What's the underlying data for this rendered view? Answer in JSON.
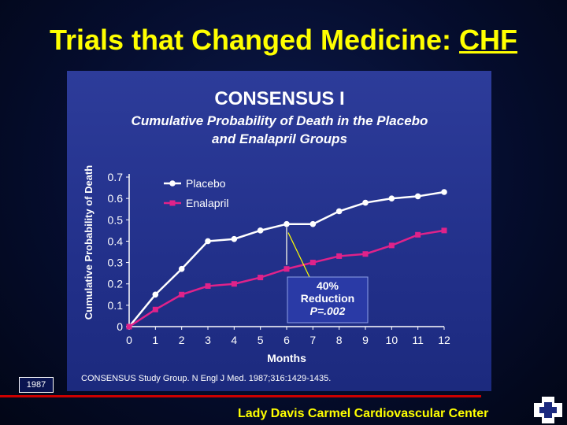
{
  "slide": {
    "title_main": "Trials that Changed Medicine: ",
    "title_abbr": "CHF",
    "year": "1987",
    "footer": "Lady Davis Carmel Cardiovascular Center"
  },
  "figure": {
    "heading": "CONSENSUS I",
    "subtitle_line1": "Cumulative Probability of Death in the Placebo",
    "subtitle_line2": "and Enalapril Groups",
    "annotation_line1": "40%",
    "annotation_line2": "Reduction",
    "annotation_line3": "P=.002",
    "citation": "CONSENSUS Study Group. N Engl J Med. 1987;316:1429-1435."
  },
  "colors": {
    "placebo": "#ffffff",
    "enalapril": "#e0228a",
    "axis": "#ffffff",
    "title": "#ffff00"
  },
  "chart_data": {
    "type": "line",
    "xlabel": "Months",
    "ylabel": "Cumulative Probability of Death",
    "xlim": [
      0,
      12
    ],
    "ylim": [
      0,
      0.7
    ],
    "x_ticks": [
      0,
      1,
      2,
      3,
      4,
      5,
      6,
      7,
      8,
      9,
      10,
      11,
      12
    ],
    "y_ticks": [
      "0",
      "0.1",
      "0.2",
      "0.3",
      "0.4",
      "0.5",
      "0.6",
      "0.7"
    ],
    "legend_position": "top-left",
    "grid": false,
    "x": [
      0,
      1,
      2,
      3,
      4,
      5,
      6,
      7,
      8,
      9,
      10,
      11,
      12
    ],
    "series": [
      {
        "name": "Placebo",
        "values": [
          0,
          0.15,
          0.27,
          0.4,
          0.41,
          0.45,
          0.48,
          0.48,
          0.54,
          0.58,
          0.6,
          0.61,
          0.63
        ]
      },
      {
        "name": "Enalapril",
        "values": [
          0,
          0.08,
          0.15,
          0.19,
          0.2,
          0.23,
          0.27,
          0.3,
          0.33,
          0.34,
          0.38,
          0.43,
          0.45
        ]
      }
    ]
  }
}
